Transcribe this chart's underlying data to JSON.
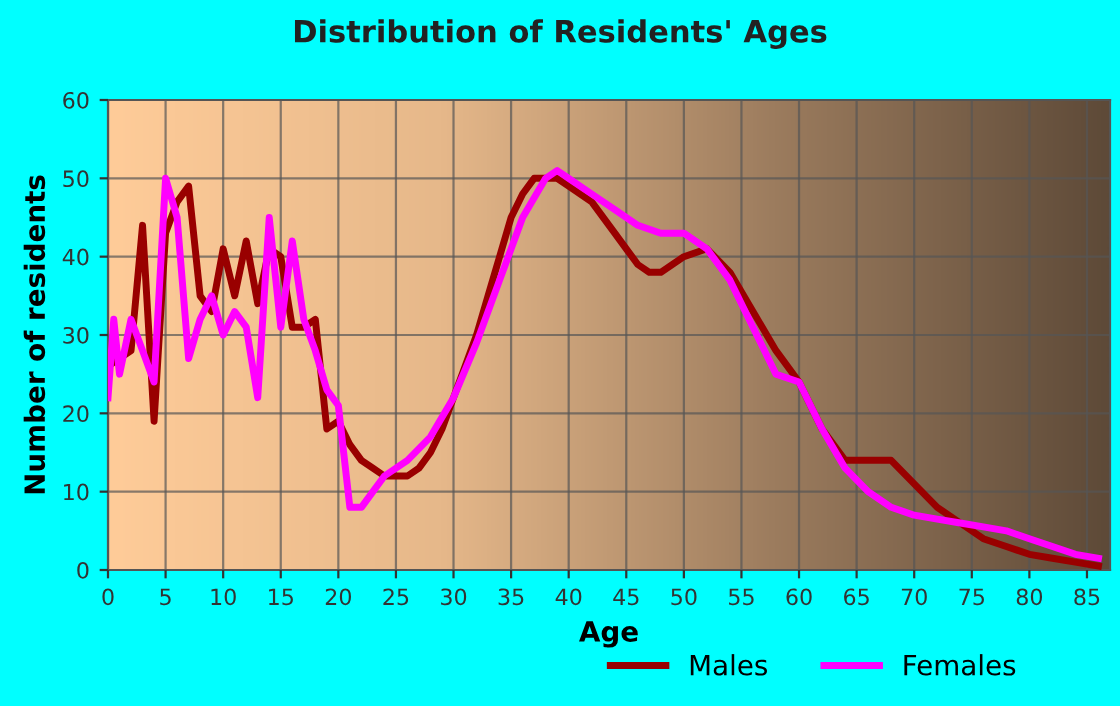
{
  "chart_data": {
    "type": "line",
    "title": "Distribution of Residents' Ages",
    "xlabel": "Age",
    "ylabel": "Number of residents",
    "series": [
      {
        "name": "Males",
        "color": "#990000",
        "x": [
          0,
          1,
          2,
          3,
          4,
          5,
          6,
          7,
          8,
          9,
          10,
          11,
          12,
          13,
          14,
          15,
          16,
          17,
          18,
          19,
          20,
          21,
          22,
          23,
          24,
          25,
          26,
          27,
          28,
          29,
          30,
          31,
          32,
          33,
          34,
          35,
          36,
          37,
          38,
          39,
          40,
          42,
          44,
          45,
          46,
          47,
          48,
          50,
          52,
          54,
          56,
          58,
          60,
          62,
          64,
          66,
          68,
          70,
          72,
          74,
          76,
          78,
          80,
          82,
          84,
          86
        ],
        "values": [
          26,
          27,
          28,
          44,
          19,
          43,
          47,
          49,
          35,
          33,
          41,
          35,
          42,
          34,
          41,
          40,
          31,
          31,
          32,
          18,
          19,
          16,
          14,
          13,
          12,
          12,
          12,
          13,
          15,
          18,
          22,
          26,
          30,
          35,
          40,
          45,
          48,
          50,
          50,
          50,
          49,
          47,
          43,
          41,
          39,
          38,
          38,
          40,
          41,
          38,
          33,
          28,
          24,
          18,
          14,
          14,
          14,
          11,
          8,
          6,
          4,
          3,
          2,
          1.5,
          1,
          0.5
        ]
      },
      {
        "name": "Females",
        "color": "#ff00ff",
        "x": [
          0,
          0.5,
          1,
          2,
          3,
          4,
          5,
          6,
          7,
          8,
          9,
          10,
          11,
          12,
          13,
          14,
          15,
          16,
          17,
          18,
          19,
          20,
          21,
          22,
          23,
          24,
          26,
          28,
          30,
          32,
          34,
          36,
          38,
          39,
          40,
          42,
          44,
          46,
          48,
          50,
          52,
          54,
          56,
          58,
          60,
          62,
          64,
          66,
          68,
          70,
          72,
          74,
          76,
          78,
          80,
          82,
          84,
          86
        ],
        "values": [
          22,
          32,
          25,
          32,
          28,
          24,
          50,
          45,
          27,
          32,
          35,
          30,
          33,
          31,
          22,
          45,
          31,
          42,
          32,
          28,
          23,
          21,
          8,
          8,
          10,
          12,
          14,
          17,
          22,
          29,
          37,
          45,
          50,
          51,
          50,
          48,
          46,
          44,
          43,
          43,
          41,
          37,
          31,
          25,
          24,
          18,
          13,
          10,
          8,
          7,
          6.5,
          6,
          5.5,
          5,
          4,
          3,
          2,
          1.5
        ]
      }
    ],
    "xlim": [
      0,
      87
    ],
    "xticks": [
      0,
      5,
      10,
      15,
      20,
      25,
      30,
      35,
      40,
      45,
      50,
      55,
      60,
      65,
      70,
      75,
      80,
      85
    ],
    "ylim": [
      0,
      60
    ],
    "yticks": [
      0,
      10,
      20,
      30,
      40,
      50,
      60
    ],
    "grid": true,
    "legend": "bottom right"
  }
}
